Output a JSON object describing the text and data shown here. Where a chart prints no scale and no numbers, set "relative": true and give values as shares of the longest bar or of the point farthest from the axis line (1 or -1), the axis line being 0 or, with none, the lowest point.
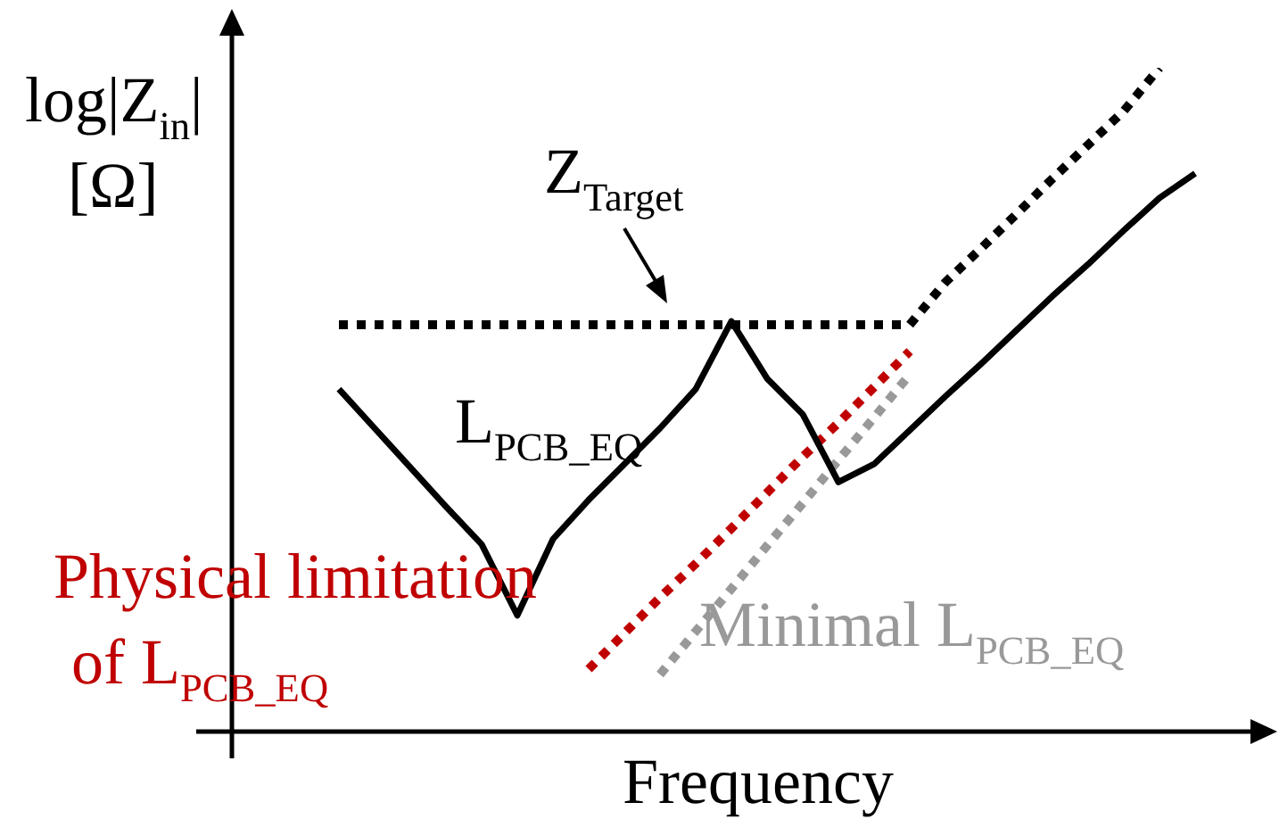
{
  "chart_data": {
    "type": "line",
    "xlabel": "Frequency",
    "ylabel": "log|Z$_{in}$| [Ω]",
    "relative": true,
    "legend": false,
    "grid": false,
    "tick_labels": false,
    "marker": "none",
    "categories": [
      null,
      null,
      null,
      null,
      null,
      null,
      null,
      null,
      null,
      null,
      null,
      null,
      null,
      null,
      null,
      null,
      null,
      null,
      null,
      null,
      null,
      null,
      null,
      null,
      null,
      null,
      null,
      null,
      null,
      null
    ],
    "series": [
      {
        "name": "L$_{PCB_EQ}$",
        "color": "#000000",
        "line_style": "solid",
        "values": [
          null,
          null,
          null,
          0.516,
          0.457,
          0.398,
          0.339,
          0.282,
          0.175,
          0.29,
          0.349,
          0.403,
          0.457,
          0.516,
          0.618,
          0.532,
          0.478,
          0.376,
          0.403,
          0.454,
          0.505,
          0.554,
          0.605,
          0.656,
          0.704,
          0.755,
          0.804,
          0.841,
          null,
          null
        ]
      },
      {
        "name": "Z$_{Target}$",
        "color": "#000000",
        "line_style": "dotted",
        "values": [
          null,
          null,
          null,
          0.613,
          0.613,
          0.613,
          0.613,
          0.613,
          0.613,
          0.613,
          0.613,
          0.613,
          0.613,
          0.613,
          0.613,
          0.613,
          0.613,
          0.613,
          0.613,
          0.613,
          0.677,
          0.728,
          0.78,
          0.833,
          0.884,
          0.935,
          1,
          null,
          null,
          null
        ]
      },
      {
        "name": "Physical limitation of L$_{PCB_EQ}$",
        "color": "#c00000",
        "line_style": "dotted",
        "values": [
          null,
          null,
          null,
          null,
          null,
          null,
          null,
          null,
          null,
          null,
          0.094,
          0.148,
          0.202,
          0.253,
          0.306,
          0.36,
          0.414,
          0.465,
          0.519,
          0.573,
          null,
          null,
          null,
          null,
          null,
          null,
          null,
          null,
          null,
          null
        ]
      },
      {
        "name": "Minimal L$_{PCB_EQ}$",
        "color": "#999999",
        "line_style": "dotted",
        "values": [
          null,
          null,
          null,
          null,
          null,
          null,
          null,
          null,
          null,
          null,
          null,
          null,
          0.086,
          0.151,
          0.215,
          0.28,
          0.344,
          0.409,
          0.473,
          0.538,
          null,
          null,
          null,
          null,
          null,
          null,
          null,
          null,
          null,
          null
        ]
      }
    ]
  }
}
